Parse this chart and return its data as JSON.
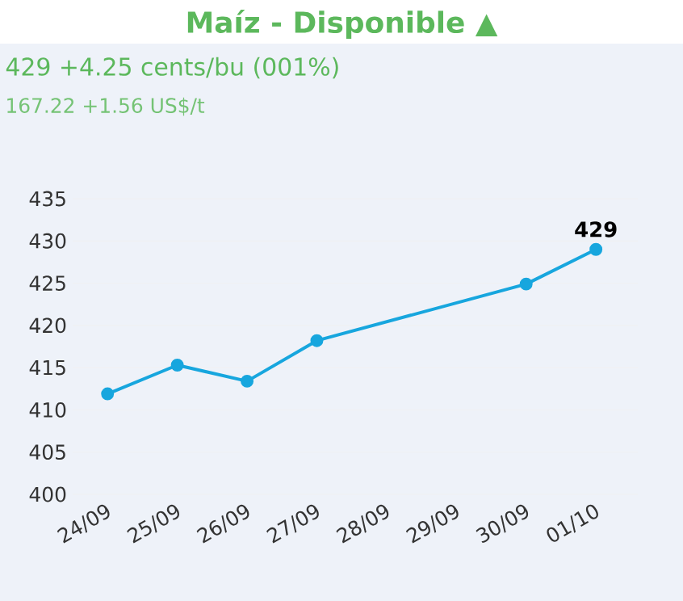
{
  "chart_data": {
    "type": "line",
    "title": "Maíz - Disponible ▲",
    "subtitle": "429 +4.25 cents/bu (001%)",
    "annotations": [
      "167.22 +1.56 US$/t"
    ],
    "categories": [
      "24/09",
      "25/09",
      "26/09",
      "27/09",
      "28/09",
      "29/09",
      "30/09",
      "01/10"
    ],
    "values": [
      411.9,
      415.3,
      413.4,
      418.2,
      null,
      null,
      424.9,
      429
    ],
    "value_labels": [
      null,
      null,
      null,
      null,
      null,
      null,
      null,
      "429"
    ],
    "color": "#17a6de",
    "marker": "circle",
    "grid": "y",
    "ylim": [
      400,
      435
    ],
    "yticks": [
      400,
      405,
      410,
      415,
      420,
      425,
      430,
      435
    ]
  }
}
